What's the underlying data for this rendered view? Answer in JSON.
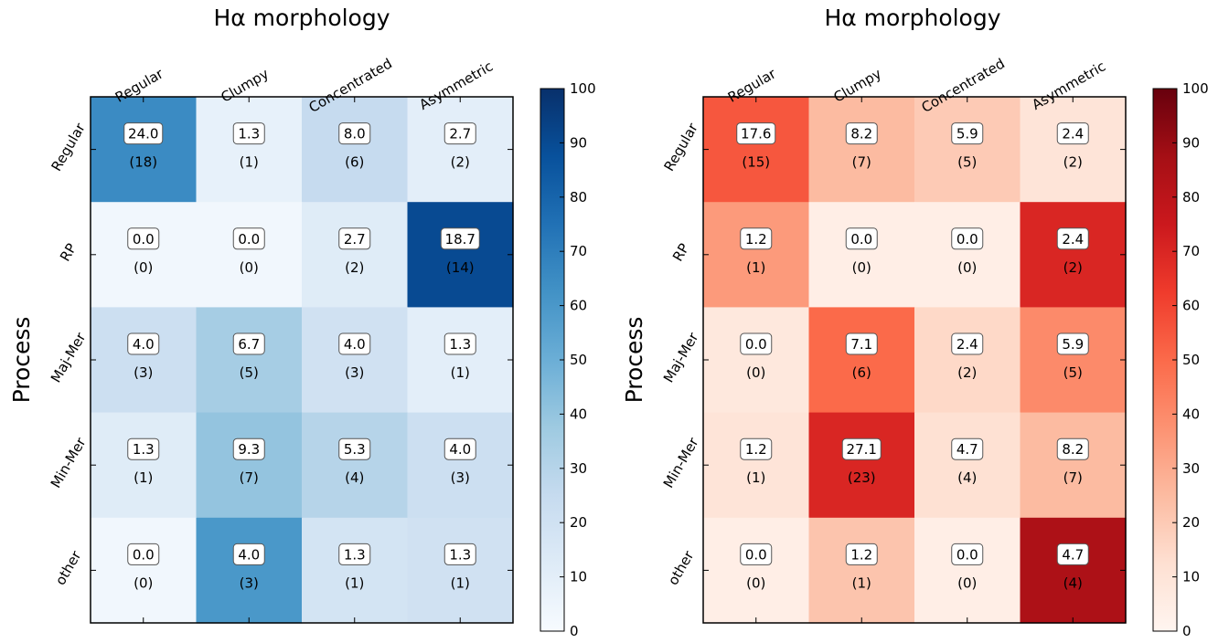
{
  "chart_data": [
    {
      "type": "heatmap",
      "title": "Hα morphology",
      "ylabel": "Process",
      "x_categories": [
        "Regular",
        "Clumpy",
        "Concentrated",
        "Asymmetric"
      ],
      "y_categories": [
        "Regular",
        "RP",
        "Maj-Mer",
        "Min-Mer",
        "other"
      ],
      "values": [
        [
          24.0,
          1.3,
          8.0,
          2.7
        ],
        [
          0.0,
          0.0,
          2.7,
          18.7
        ],
        [
          4.0,
          6.7,
          4.0,
          1.3
        ],
        [
          1.3,
          9.3,
          5.3,
          4.0
        ],
        [
          0.0,
          4.0,
          1.3,
          1.3
        ]
      ],
      "value_labels": [
        [
          "24.0",
          "1.3",
          "8.0",
          "2.7"
        ],
        [
          "0.0",
          "0.0",
          "2.7",
          "18.7"
        ],
        [
          "4.0",
          "6.7",
          "4.0",
          "1.3"
        ],
        [
          "1.3",
          "9.3",
          "5.3",
          "4.0"
        ],
        [
          "0.0",
          "4.0",
          "1.3",
          "1.3"
        ]
      ],
      "count_labels": [
        [
          "(18)",
          "(1)",
          "(6)",
          "(2)"
        ],
        [
          "(0)",
          "(0)",
          "(2)",
          "(14)"
        ],
        [
          "(3)",
          "(5)",
          "(3)",
          "(1)"
        ],
        [
          "(1)",
          "(7)",
          "(4)",
          "(3)"
        ],
        [
          "(0)",
          "(3)",
          "(1)",
          "(1)"
        ]
      ],
      "cell_color_levels": [
        [
          65,
          8,
          25,
          10
        ],
        [
          3,
          3,
          12,
          90
        ],
        [
          22,
          35,
          20,
          10
        ],
        [
          12,
          40,
          30,
          22
        ],
        [
          3,
          60,
          18,
          20
        ]
      ],
      "colormap": "Blues",
      "colormap_stops": [
        "#f7fbff",
        "#deebf7",
        "#c6dbef",
        "#9ecae1",
        "#6baed6",
        "#4292c6",
        "#2171b5",
        "#08519c",
        "#08306b"
      ],
      "colorbar_range": [
        0,
        100
      ],
      "colorbar_ticks": [
        "0",
        "10",
        "20",
        "30",
        "40",
        "50",
        "60",
        "70",
        "80",
        "90",
        "100"
      ]
    },
    {
      "type": "heatmap",
      "title": "Hα morphology",
      "ylabel": "Process",
      "x_categories": [
        "Regular",
        "Clumpy",
        "Concentrated",
        "Asymmetric"
      ],
      "y_categories": [
        "Regular",
        "RP",
        "Maj-Mer",
        "Min-Mer",
        "other"
      ],
      "values": [
        [
          17.6,
          8.2,
          5.9,
          2.4
        ],
        [
          1.2,
          0.0,
          0.0,
          2.4
        ],
        [
          0.0,
          7.1,
          2.4,
          5.9
        ],
        [
          1.2,
          27.1,
          4.7,
          8.2
        ],
        [
          0.0,
          1.2,
          0.0,
          4.7
        ]
      ],
      "value_labels": [
        [
          "17.6",
          "8.2",
          "5.9",
          "2.4"
        ],
        [
          "1.2",
          "0.0",
          "0.0",
          "2.4"
        ],
        [
          "0.0",
          "7.1",
          "2.4",
          "5.9"
        ],
        [
          "1.2",
          "27.1",
          "4.7",
          "8.2"
        ],
        [
          "0.0",
          "1.2",
          "0.0",
          "4.7"
        ]
      ],
      "count_labels": [
        [
          "(15)",
          "(7)",
          "(5)",
          "(2)"
        ],
        [
          "(1)",
          "(0)",
          "(0)",
          "(2)"
        ],
        [
          "(0)",
          "(6)",
          "(2)",
          "(5)"
        ],
        [
          "(1)",
          "(23)",
          "(4)",
          "(7)"
        ],
        [
          "(0)",
          "(1)",
          "(0)",
          "(4)"
        ]
      ],
      "cell_color_levels": [
        [
          55,
          25,
          20,
          10
        ],
        [
          35,
          4,
          4,
          70
        ],
        [
          8,
          50,
          15,
          40
        ],
        [
          10,
          70,
          12,
          25
        ],
        [
          4,
          22,
          4,
          85
        ]
      ],
      "colormap": "Reds",
      "colormap_stops": [
        "#fff5f0",
        "#fee0d2",
        "#fcbba1",
        "#fc9272",
        "#fb6a4a",
        "#ef3b2c",
        "#cb181d",
        "#a50f15",
        "#67000d"
      ],
      "colorbar_range": [
        0,
        100
      ],
      "colorbar_ticks": [
        "0",
        "10",
        "20",
        "30",
        "40",
        "50",
        "60",
        "70",
        "80",
        "90",
        "100"
      ]
    }
  ]
}
